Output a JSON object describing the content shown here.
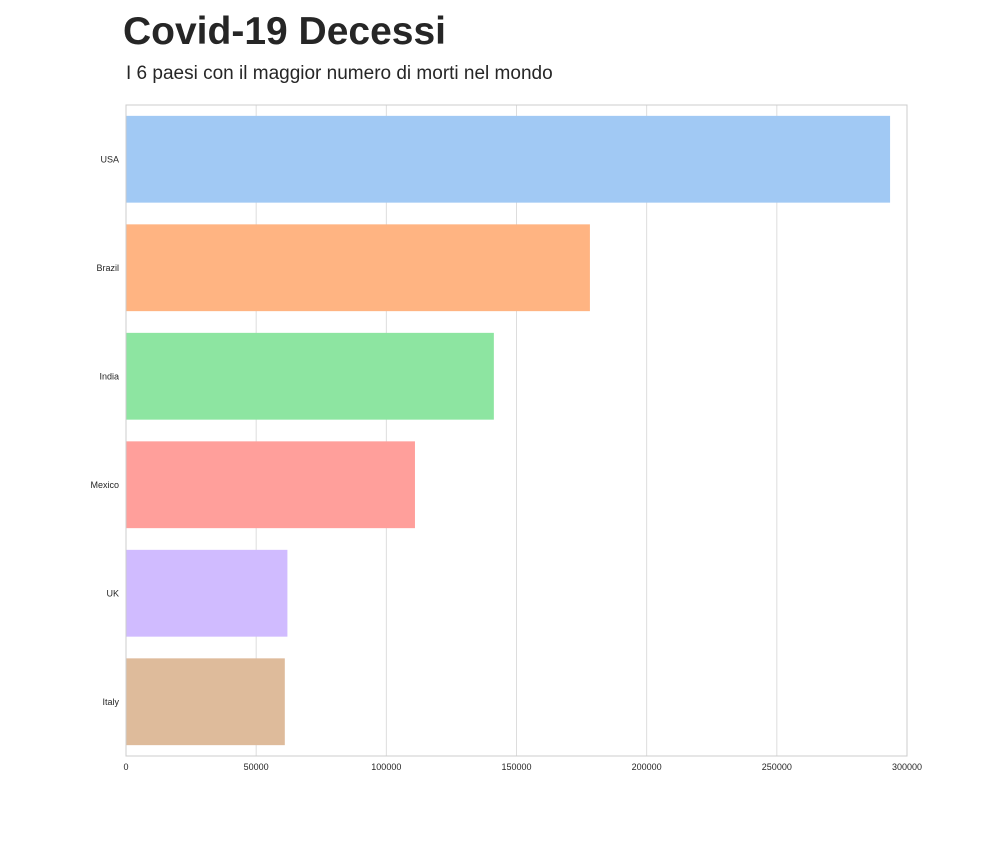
{
  "title": "Covid-19 Decessi",
  "subtitle": "I 6 paesi con il maggior numero di morti nel mondo",
  "chart_data": {
    "type": "bar",
    "orientation": "horizontal",
    "title": "Covid-19 Decessi",
    "subtitle": "I 6 paesi con il maggior numero di morti nel mondo",
    "xlabel": "",
    "ylabel": "",
    "categories": [
      "USA",
      "Brazil",
      "India",
      "Mexico",
      "UK",
      "Italy"
    ],
    "values": [
      293500,
      178200,
      141300,
      111000,
      62000,
      61000
    ],
    "colors": [
      "#a1c9f4",
      "#ffb482",
      "#8de5a1",
      "#ff9f9b",
      "#d0bbff",
      "#debb9b"
    ],
    "xlim": [
      0,
      300000
    ],
    "x_ticks": [
      0,
      50000,
      100000,
      150000,
      200000,
      250000,
      300000
    ],
    "x_tick_labels": [
      "0",
      "50000",
      "100000",
      "150000",
      "200000",
      "250000",
      "300000"
    ],
    "grid": "vertical",
    "legend": "none"
  }
}
